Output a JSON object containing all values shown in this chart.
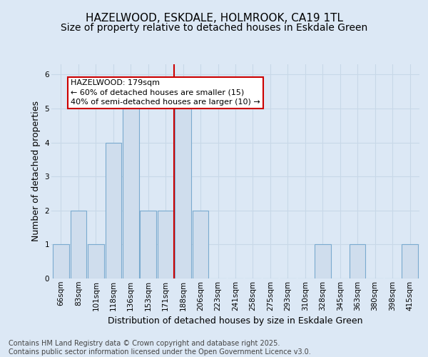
{
  "title": "HAZELWOOD, ESKDALE, HOLMROOK, CA19 1TL",
  "subtitle": "Size of property relative to detached houses in Eskdale Green",
  "xlabel": "Distribution of detached houses by size in Eskdale Green",
  "ylabel": "Number of detached properties",
  "footer_line1": "Contains HM Land Registry data © Crown copyright and database right 2025.",
  "footer_line2": "Contains public sector information licensed under the Open Government Licence v3.0.",
  "categories": [
    "66sqm",
    "83sqm",
    "101sqm",
    "118sqm",
    "136sqm",
    "153sqm",
    "171sqm",
    "188sqm",
    "206sqm",
    "223sqm",
    "241sqm",
    "258sqm",
    "275sqm",
    "293sqm",
    "310sqm",
    "328sqm",
    "345sqm",
    "363sqm",
    "380sqm",
    "398sqm",
    "415sqm"
  ],
  "values": [
    1,
    2,
    1,
    4,
    5,
    2,
    2,
    5,
    2,
    0,
    0,
    0,
    0,
    0,
    0,
    1,
    0,
    1,
    0,
    0,
    1
  ],
  "bar_color": "#cfdded",
  "bar_edge_color": "#7aaacf",
  "bar_edge_width": 0.8,
  "annotation_text": "HAZELWOOD: 179sqm\n← 60% of detached houses are smaller (15)\n40% of semi-detached houses are larger (10) →",
  "annotation_box_color": "#ffffff",
  "annotation_box_edge_color": "#cc0000",
  "vline_x_index": 6.5,
  "vline_color": "#cc0000",
  "vline_linewidth": 1.5,
  "ylim": [
    0,
    6.3
  ],
  "yticks": [
    0,
    1,
    2,
    3,
    4,
    5,
    6
  ],
  "grid_color": "#c8d8e8",
  "background_color": "#dce8f5",
  "title_fontsize": 11,
  "subtitle_fontsize": 10,
  "xlabel_fontsize": 9,
  "ylabel_fontsize": 9,
  "tick_fontsize": 7.5,
  "annotation_fontsize": 8,
  "footer_fontsize": 7
}
